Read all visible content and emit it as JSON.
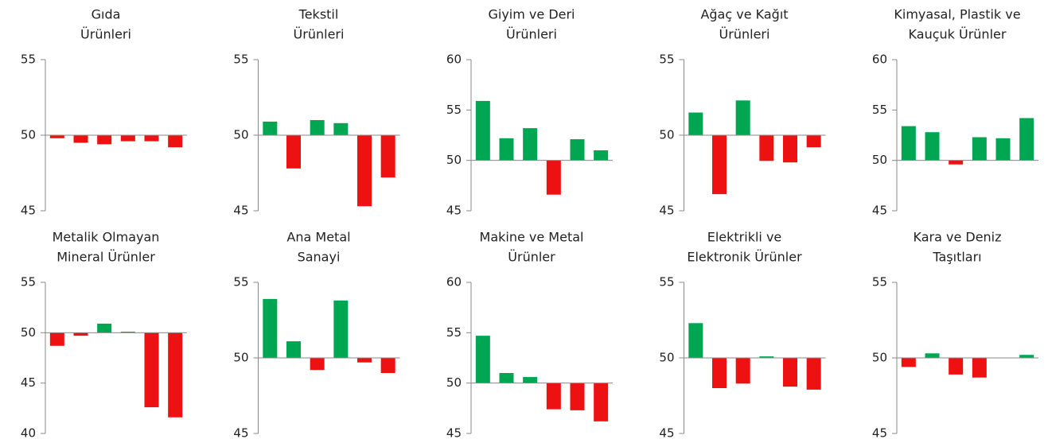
{
  "chart_data": [
    {
      "type": "bar",
      "title": [
        "Gıda",
        "Ürünleri"
      ],
      "values": [
        49.8,
        49.5,
        49.4,
        49.6,
        49.6,
        49.2
      ],
      "ylim": [
        45,
        55
      ],
      "yticks": [
        45,
        50,
        55
      ],
      "baseline": 50,
      "color_above": "#00a651",
      "color_below": "#ee1111"
    },
    {
      "type": "bar",
      "title": [
        "Tekstil",
        "Ürünleri"
      ],
      "values": [
        50.9,
        47.8,
        51.0,
        50.8,
        45.3,
        47.2
      ],
      "ylim": [
        45,
        55
      ],
      "yticks": [
        45,
        50,
        55
      ],
      "baseline": 50,
      "color_above": "#00a651",
      "color_below": "#ee1111"
    },
    {
      "type": "bar",
      "title": [
        "Giyim ve Deri",
        "Ürünleri"
      ],
      "values": [
        55.9,
        52.2,
        53.2,
        46.6,
        52.1,
        51.0
      ],
      "ylim": [
        45,
        60
      ],
      "yticks": [
        45,
        50,
        55,
        60
      ],
      "baseline": 50,
      "color_above": "#00a651",
      "color_below": "#ee1111"
    },
    {
      "type": "bar",
      "title": [
        "Ağaç ve Kağıt",
        "Ürünleri"
      ],
      "values": [
        51.5,
        46.1,
        52.3,
        48.3,
        48.2,
        49.2
      ],
      "ylim": [
        45,
        55
      ],
      "yticks": [
        45,
        50,
        55
      ],
      "baseline": 50,
      "color_above": "#00a651",
      "color_below": "#ee1111"
    },
    {
      "type": "bar",
      "title": [
        "Kimyasal, Plastik ve",
        "Kauçuk Ürünler"
      ],
      "values": [
        53.4,
        52.8,
        49.6,
        52.3,
        52.2,
        54.2
      ],
      "ylim": [
        45,
        60
      ],
      "yticks": [
        45,
        50,
        55,
        60
      ],
      "baseline": 50,
      "color_above": "#00a651",
      "color_below": "#ee1111"
    },
    {
      "type": "bar",
      "title": [
        "Metalik Olmayan",
        "Mineral Ürünler"
      ],
      "values": [
        48.7,
        49.7,
        50.9,
        50.1,
        42.6,
        41.6
      ],
      "ylim": [
        40,
        55
      ],
      "yticks": [
        40,
        45,
        50,
        55
      ],
      "baseline": 50,
      "color_above": "#00a651",
      "color_below": "#ee1111"
    },
    {
      "type": "bar",
      "title": [
        "Ana Metal",
        "Sanayi"
      ],
      "values": [
        53.9,
        51.1,
        49.2,
        53.8,
        49.7,
        49.0
      ],
      "ylim": [
        45,
        55
      ],
      "yticks": [
        45,
        50,
        55
      ],
      "baseline": 50,
      "color_above": "#00a651",
      "color_below": "#ee1111"
    },
    {
      "type": "bar",
      "title": [
        "Makine ve Metal",
        "Ürünler"
      ],
      "values": [
        54.7,
        51.0,
        50.6,
        47.4,
        47.3,
        46.2
      ],
      "ylim": [
        45,
        60
      ],
      "yticks": [
        45,
        50,
        55,
        60
      ],
      "baseline": 50,
      "color_above": "#00a651",
      "color_below": "#ee1111"
    },
    {
      "type": "bar",
      "title": [
        "Elektrikli ve",
        "Elektronik Ürünler"
      ],
      "values": [
        52.3,
        48.0,
        48.3,
        50.1,
        48.1,
        47.9
      ],
      "ylim": [
        45,
        55
      ],
      "yticks": [
        45,
        50,
        55
      ],
      "baseline": 50,
      "color_above": "#00a651",
      "color_below": "#ee1111"
    },
    {
      "type": "bar",
      "title": [
        "Kara ve Deniz",
        "Taşıtları"
      ],
      "values": [
        49.4,
        50.3,
        48.9,
        48.7,
        50.0,
        50.2
      ],
      "ylim": [
        45,
        55
      ],
      "yticks": [
        45,
        50,
        55
      ],
      "baseline": 50,
      "color_above": "#00a651",
      "color_below": "#ee1111"
    }
  ]
}
